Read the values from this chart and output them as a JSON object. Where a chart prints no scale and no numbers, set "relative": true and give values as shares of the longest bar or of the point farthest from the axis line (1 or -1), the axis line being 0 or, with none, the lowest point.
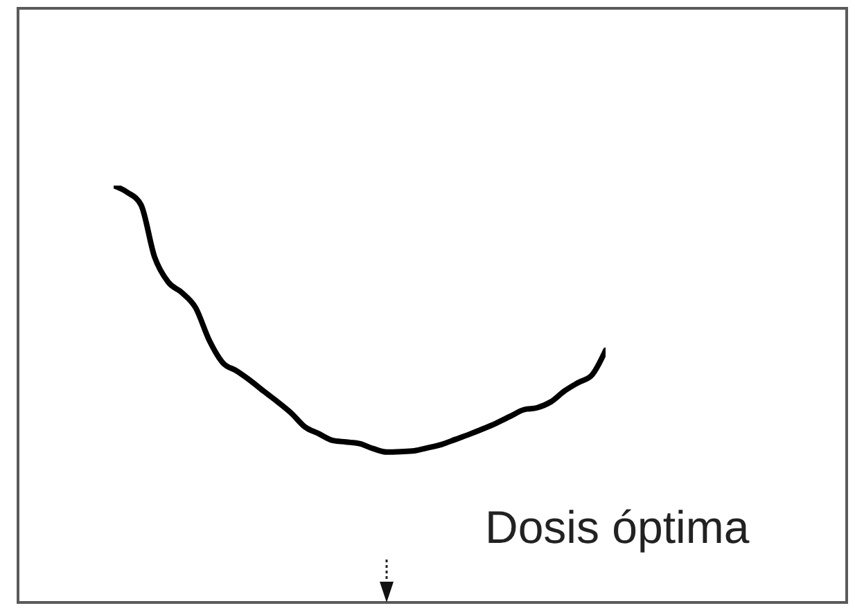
{
  "chart_data": {
    "type": "line",
    "relative": true,
    "categories": [
      null,
      null,
      null,
      null,
      null,
      null,
      null,
      null,
      null,
      null,
      null,
      null,
      null,
      null,
      null,
      null,
      null,
      null,
      null,
      null,
      null,
      null,
      null,
      null,
      null,
      null,
      null,
      null,
      null,
      null,
      null,
      null,
      null,
      null,
      null,
      null,
      null
    ],
    "values": [
      1,
      0.984,
      0.954,
      0.829,
      0.769,
      0.744,
      0.708,
      0.63,
      0.576,
      0.557,
      0.534,
      0.508,
      0.483,
      0.456,
      0.423,
      0.407,
      0.391,
      0.387,
      0.383,
      0.371,
      0.363,
      0.364,
      0.366,
      0.373,
      0.381,
      0.393,
      0.405,
      0.418,
      0.432,
      0.448,
      0.464,
      0.469,
      0.483,
      0.509,
      0.529,
      0.547,
      0.606
    ],
    "color": "#000000",
    "annotations": [
      "Dosis óptima"
    ]
  }
}
